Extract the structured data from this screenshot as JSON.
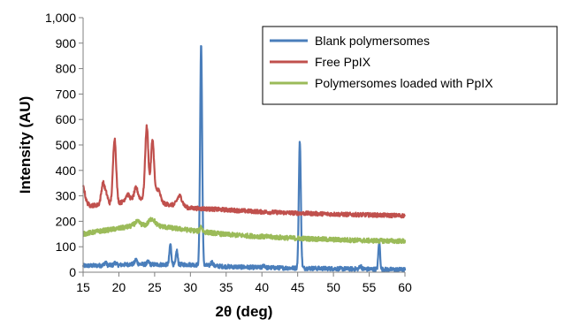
{
  "chart_data": {
    "type": "line",
    "title": "",
    "xlabel": "2θ (deg)",
    "ylabel": "Intensity (AU)",
    "xlim": [
      15,
      60
    ],
    "ylim": [
      0,
      1000
    ],
    "xticks": [
      15,
      20,
      25,
      30,
      35,
      40,
      45,
      50,
      55,
      60
    ],
    "yticks": [
      0,
      100,
      200,
      300,
      400,
      500,
      600,
      700,
      800,
      900,
      1000
    ],
    "ytick_labels": [
      "0",
      "100",
      "200",
      "300",
      "400",
      "500",
      "600",
      "700",
      "800",
      "900",
      "1,000"
    ],
    "grid": false,
    "legend_position": "top-right",
    "series": [
      {
        "name": "Blank polymersomes",
        "color": "#4a7ebb",
        "baseline": [
          [
            15,
            25
          ],
          [
            20,
            28
          ],
          [
            22,
            32
          ],
          [
            25,
            30
          ],
          [
            30,
            30
          ],
          [
            35,
            22
          ],
          [
            40,
            18
          ],
          [
            45,
            16
          ],
          [
            50,
            14
          ],
          [
            55,
            12
          ],
          [
            60,
            10
          ]
        ],
        "peaks": [
          [
            18.1,
            12,
            0.15
          ],
          [
            19.5,
            10,
            0.15
          ],
          [
            22.4,
            18,
            0.15
          ],
          [
            24.1,
            10,
            0.15
          ],
          [
            27.2,
            80,
            0.13
          ],
          [
            28.1,
            55,
            0.12
          ],
          [
            31.5,
            870,
            0.14
          ],
          [
            33.0,
            15,
            0.15
          ],
          [
            40.3,
            10,
            0.15
          ],
          [
            45.3,
            500,
            0.14
          ],
          [
            53.8,
            12,
            0.15
          ],
          [
            56.4,
            110,
            0.12
          ]
        ],
        "noise": 8
      },
      {
        "name": "Free PpIX",
        "color": "#c0504d",
        "baseline": [
          [
            15,
            280
          ],
          [
            16,
            262
          ],
          [
            18,
            265
          ],
          [
            20,
            272
          ],
          [
            22,
            285
          ],
          [
            24,
            292
          ],
          [
            26,
            270
          ],
          [
            28,
            262
          ],
          [
            30,
            252
          ],
          [
            35,
            245
          ],
          [
            40,
            237
          ],
          [
            45,
            232
          ],
          [
            50,
            228
          ],
          [
            55,
            225
          ],
          [
            60,
            222
          ]
        ],
        "peaks": [
          [
            15.0,
            55,
            0.25
          ],
          [
            17.8,
            85,
            0.25
          ],
          [
            18.3,
            30,
            0.2
          ],
          [
            19.4,
            255,
            0.22
          ],
          [
            21.2,
            25,
            0.3
          ],
          [
            22.4,
            45,
            0.25
          ],
          [
            23.9,
            280,
            0.22
          ],
          [
            24.7,
            235,
            0.22
          ],
          [
            25.5,
            50,
            0.3
          ],
          [
            28.5,
            40,
            0.35
          ]
        ],
        "noise": 8
      },
      {
        "name": "Polymersomes loaded with PpIX",
        "color": "#9bbb59",
        "baseline": [
          [
            15,
            150
          ],
          [
            17,
            160
          ],
          [
            20,
            172
          ],
          [
            22,
            182
          ],
          [
            25,
            185
          ],
          [
            27,
            175
          ],
          [
            30,
            165
          ],
          [
            32,
            158
          ],
          [
            35,
            148
          ],
          [
            40,
            140
          ],
          [
            45,
            133
          ],
          [
            50,
            128
          ],
          [
            55,
            124
          ],
          [
            60,
            122
          ]
        ],
        "peaks": [
          [
            22.6,
            15,
            0.4
          ],
          [
            24.6,
            25,
            0.4
          ],
          [
            31.5,
            20,
            0.15
          ]
        ],
        "noise": 9
      }
    ]
  }
}
